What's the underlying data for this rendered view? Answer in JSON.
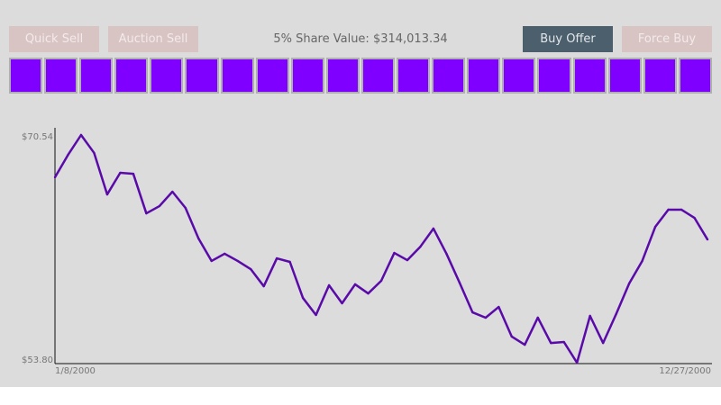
{
  "toolbar": {
    "quick_sell": "Quick Sell",
    "auction_sell": "Auction Sell",
    "share_value": "5% Share Value: $314,013.34",
    "buy_offer": "Buy Offer",
    "force_buy": "Force Buy"
  },
  "slots": {
    "count": 20,
    "color": "#8000ff"
  },
  "colors": {
    "background": "#dcdcdc",
    "line": "#5a0aa8",
    "buy_offer": "#4b5f6d",
    "disabled_button": "#d9c4c4"
  },
  "chart_data": {
    "type": "line",
    "title": "",
    "xlabel": "",
    "ylabel": "",
    "x_start_label": "1/8/2000",
    "x_end_label": "12/27/2000",
    "y_max_label": "$70.54",
    "y_min_label": "$53.80",
    "ylim": [
      53.8,
      70.54
    ],
    "grid": false,
    "series": [
      {
        "name": "price",
        "values": [
          67.43,
          69.08,
          70.54,
          69.22,
          66.17,
          67.76,
          67.69,
          64.78,
          65.31,
          66.37,
          65.18,
          62.93,
          61.28,
          61.81,
          61.28,
          60.68,
          59.42,
          61.47,
          61.21,
          58.56,
          57.31,
          59.49,
          58.17,
          59.56,
          58.89,
          59.82,
          61.87,
          61.34,
          62.33,
          63.66,
          61.81,
          59.69,
          57.5,
          57.11,
          57.9,
          55.72,
          55.12,
          57.11,
          55.25,
          55.32,
          53.8,
          57.24,
          55.25,
          57.37,
          59.62,
          61.28,
          63.79,
          65.05,
          65.05,
          64.45,
          62.86
        ]
      }
    ]
  }
}
